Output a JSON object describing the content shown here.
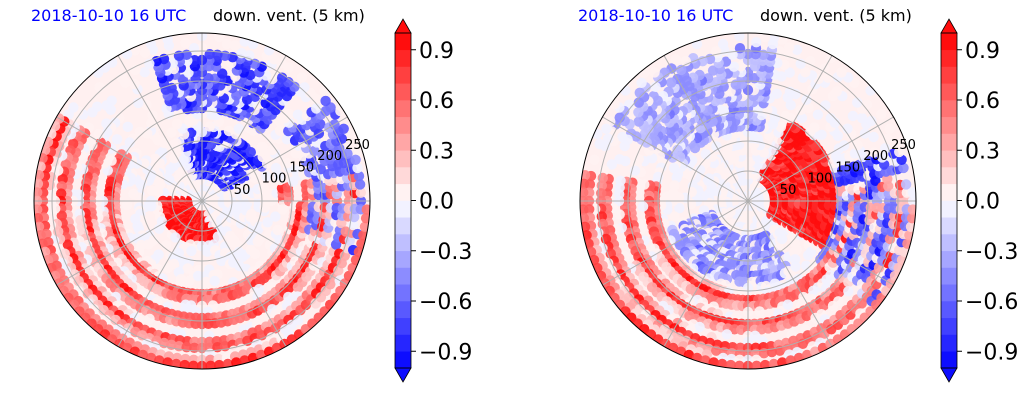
{
  "panels": [
    {
      "time_label": "2018-10-10 16 UTC",
      "field_label": "down. vent. (5 km)",
      "radial_labels": [
        "50",
        "100",
        "150",
        "200",
        "250"
      ]
    },
    {
      "time_label": "2018-10-10 16 UTC",
      "field_label": "down. vent. (5 km)",
      "radial_labels": [
        "50",
        "100",
        "150",
        "200",
        "250"
      ]
    }
  ],
  "chart_data": [
    {
      "type": "heatmap",
      "projection": "polar",
      "title_left": "2018-10-10 16 UTC",
      "title_right": "down. vent. (5 km)",
      "radial_ticks": [
        50,
        100,
        150,
        200,
        250
      ],
      "radial_max": 280,
      "angular_gridlines_deg": [
        0,
        30,
        60,
        90,
        120,
        150,
        180,
        210,
        240,
        270,
        300,
        330
      ],
      "grid": true,
      "colorbar": {
        "range": [
          -1.0,
          1.0
        ],
        "ticks": [
          -0.9,
          -0.6,
          -0.3,
          0.0,
          0.3,
          0.6,
          0.9
        ],
        "tick_labels": [
          "−0.9",
          "−0.6",
          "−0.3",
          "0.0",
          "0.3",
          "0.6",
          "0.9"
        ],
        "levels": 20,
        "extend": "both",
        "colormap": "bwr",
        "colors": {
          "min": "#0000ff",
          "mid": "#ffffff",
          "max": "#ff0000"
        }
      },
      "pattern": {
        "description_values": "positive rainbands spiraling outward on the west/south, negative band on north/east",
        "positive_arc_start_deg": 150,
        "positive_arc_span_deg": 220,
        "spiral_ring_radii": [
          150,
          190,
          230,
          265
        ],
        "core_positive": {
          "r": [
            20,
            70
          ],
          "theta_deg": [
            180,
            290
          ]
        },
        "negative_regions": [
          {
            "r": [
              40,
              120
            ],
            "theta_deg": [
              30,
              110
            ],
            "value": -0.9
          },
          {
            "r": [
              150,
              250
            ],
            "theta_deg": [
              50,
              110
            ],
            "value": -0.8
          },
          {
            "r": [
              180,
              270
            ],
            "theta_deg": [
              -20,
              40
            ],
            "value": -0.7
          }
        ],
        "seed": 1
      }
    },
    {
      "type": "heatmap",
      "projection": "polar",
      "title_left": "2018-10-10 16 UTC",
      "title_right": "down. vent. (5 km)",
      "radial_ticks": [
        50,
        100,
        150,
        200,
        250
      ],
      "radial_max": 280,
      "angular_gridlines_deg": [
        0,
        30,
        60,
        90,
        120,
        150,
        180,
        210,
        240,
        270,
        300,
        330
      ],
      "grid": true,
      "colorbar": {
        "range": [
          -1.0,
          1.0
        ],
        "ticks": [
          -0.9,
          -0.6,
          -0.3,
          0.0,
          0.3,
          0.6,
          0.9
        ],
        "tick_labels": [
          "−0.9",
          "−0.6",
          "−0.3",
          "0.0",
          "0.3",
          "0.6",
          "0.9"
        ],
        "levels": 20,
        "extend": "both",
        "colormap": "bwr",
        "colors": {
          "min": "#0000ff",
          "mid": "#ffffff",
          "max": "#ff0000"
        }
      },
      "pattern": {
        "description_values": "positive rainbands on the west/south, strong positive core east of center, scattered negative cells",
        "positive_arc_start_deg": 170,
        "positive_arc_span_deg": 200,
        "spiral_ring_radii": [
          160,
          200,
          240,
          270
        ],
        "core_positive": {
          "r": [
            40,
            150
          ],
          "theta_deg": [
            -30,
            60
          ]
        },
        "negative_regions": [
          {
            "r": [
              60,
              140
            ],
            "theta_deg": [
              200,
              300
            ],
            "value": -0.5
          },
          {
            "r": [
              150,
              270
            ],
            "theta_deg": [
              -40,
              20
            ],
            "value": -0.8
          },
          {
            "r": [
              120,
              260
            ],
            "theta_deg": [
              80,
              150
            ],
            "value": -0.4
          }
        ],
        "seed": 2
      }
    }
  ]
}
